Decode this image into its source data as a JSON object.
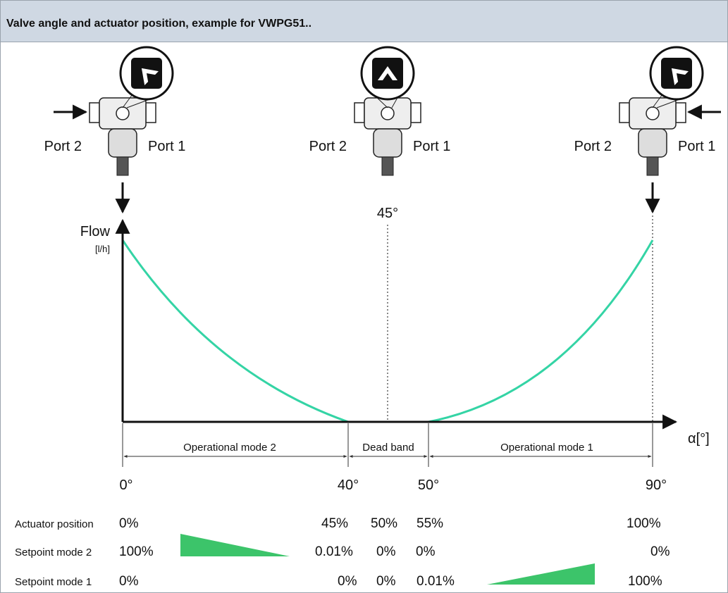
{
  "header": {
    "title": "Valve angle and actuator position, example for VWPG51.."
  },
  "diagram": {
    "ports": [
      {
        "left": "Port 2",
        "right": "Port 1"
      },
      {
        "left": "Port 2",
        "right": "Port 1"
      },
      {
        "left": "Port 2",
        "right": "Port 1"
      }
    ],
    "angle_marker": "45°",
    "y_label": "Flow",
    "y_unit": "[l/h]",
    "x_label": "α[°]",
    "regions": [
      "Operational mode 2",
      "Dead band",
      "Operational mode 1"
    ],
    "angle_ticks": [
      "0°",
      "40°",
      "50°",
      "90°"
    ]
  },
  "table": {
    "rows": [
      {
        "label": "Actuator position",
        "values": [
          "0%",
          "45%",
          "50%",
          "55%",
          "100%"
        ]
      },
      {
        "label": "Setpoint mode 2",
        "values": [
          "100%",
          "0.01%",
          "0%",
          "0%",
          "0%"
        ]
      },
      {
        "label": "Setpoint mode 1",
        "values": [
          "0%",
          "0%",
          "0%",
          "0.01%",
          "100%"
        ]
      }
    ]
  }
}
